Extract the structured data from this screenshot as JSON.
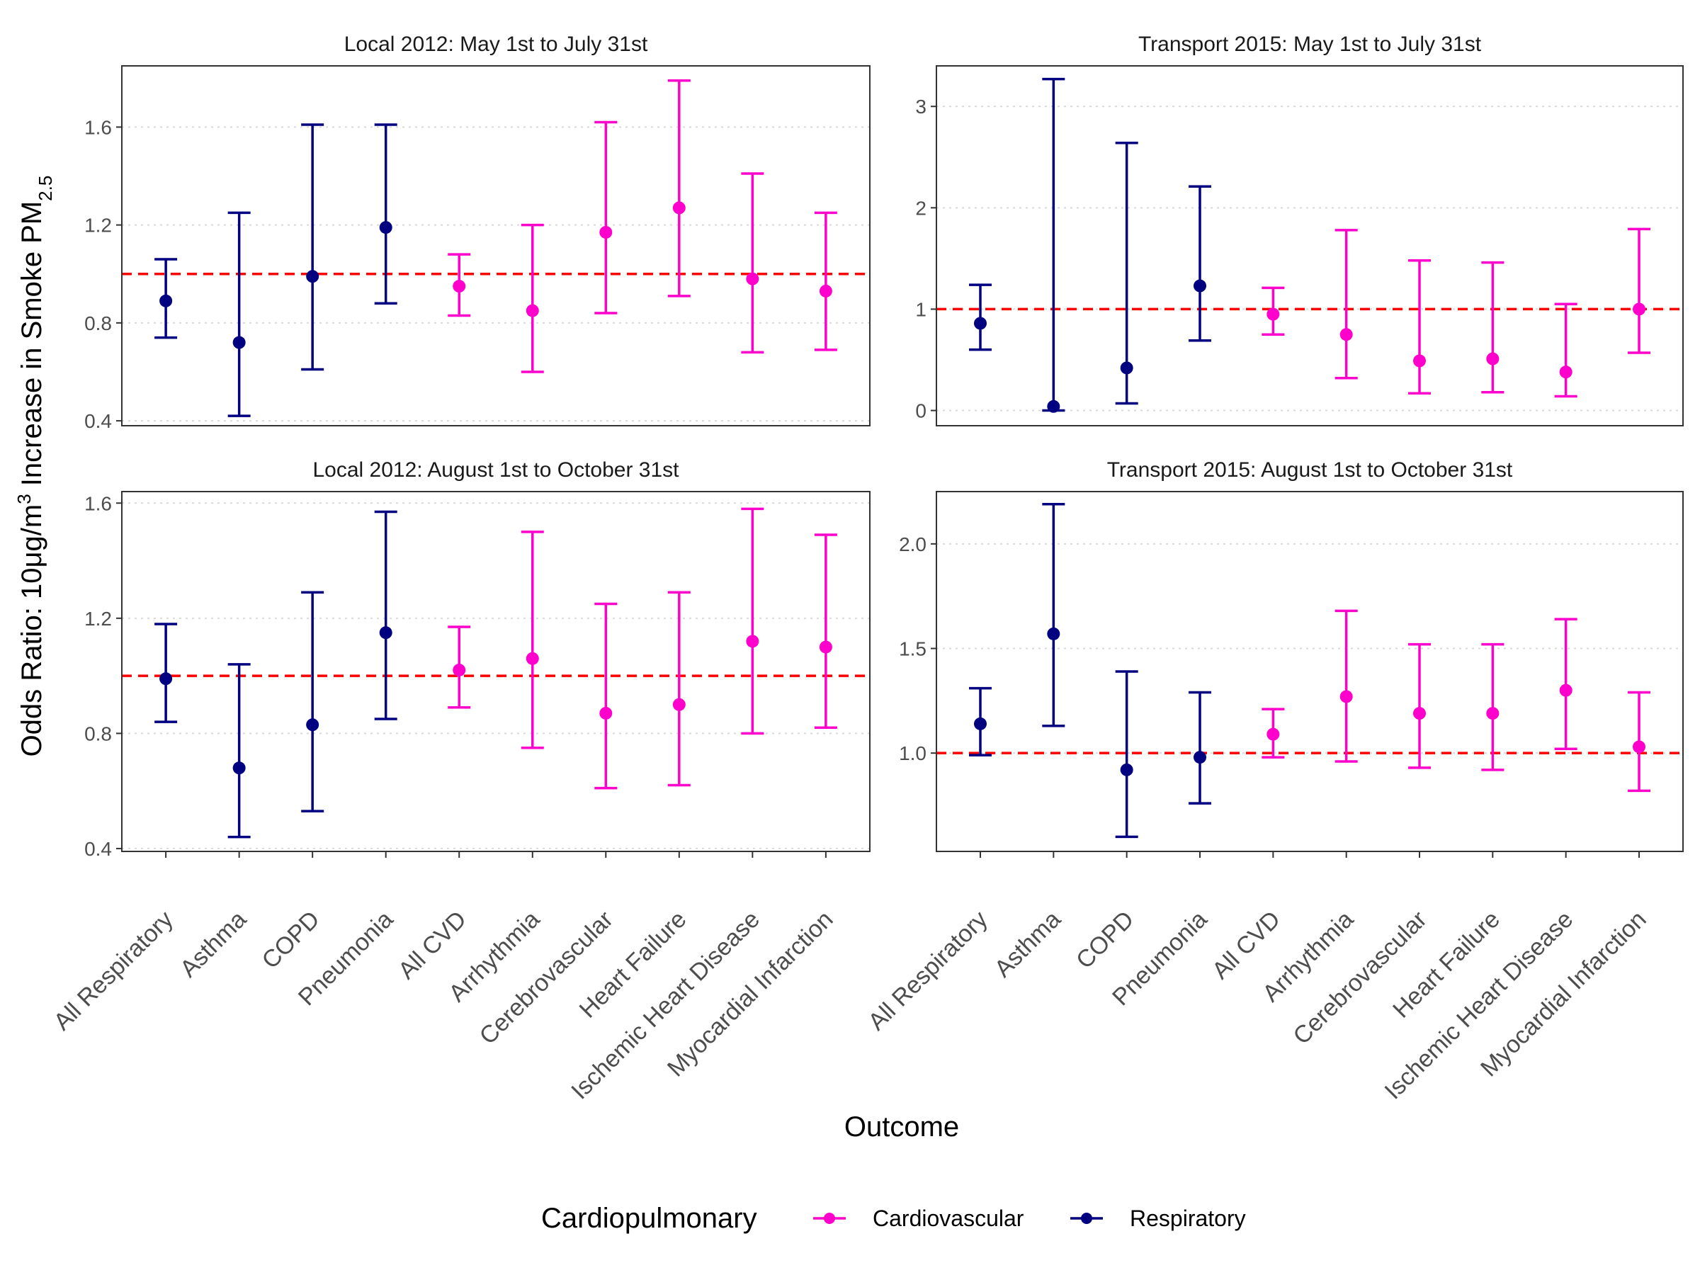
{
  "chart_data": {
    "type": "errorbar",
    "categories": [
      "All Respiratory",
      "Asthma",
      "COPD",
      "Pneumonia",
      "All CVD",
      "Arrhythmia",
      "Cerebrovascular",
      "Heart Failure",
      "Ischemic Heart Disease",
      "Myocardial Infarction"
    ],
    "groups": [
      "Respiratory",
      "Respiratory",
      "Respiratory",
      "Respiratory",
      "Cardiovascular",
      "Cardiovascular",
      "Cardiovascular",
      "Cardiovascular",
      "Cardiovascular",
      "Cardiovascular"
    ],
    "xlabel": "Outcome",
    "ylabel": {
      "prefix": "Odds Ratio: 10μg/m",
      "sup": "3",
      "middle": " Increase in Smoke PM",
      "sub": "2.5"
    },
    "reference_line": 1.0,
    "legend": {
      "title": "Cardiopulmonary",
      "position": "bottom",
      "entries": [
        {
          "name": "Cardiovascular",
          "color": "#FF00CC"
        },
        {
          "name": "Respiratory",
          "color": "#000080"
        }
      ]
    },
    "colors": {
      "Respiratory": "#000080",
      "Cardiovascular": "#FF00CC",
      "reference": "#FF0000"
    },
    "panels": [
      {
        "title": "Local 2012: May 1st to July 31st",
        "ylim": [
          0.38,
          1.85
        ],
        "yticks": [
          0.4,
          0.8,
          1.2,
          1.6
        ],
        "yticklabels": [
          "0.4",
          "0.8",
          "1.2",
          "1.6"
        ],
        "estimate": [
          0.89,
          0.72,
          0.99,
          1.19,
          0.95,
          0.85,
          1.17,
          1.27,
          0.98,
          0.93
        ],
        "lower": [
          0.74,
          0.42,
          0.61,
          0.88,
          0.83,
          0.6,
          0.84,
          0.91,
          0.68,
          0.69
        ],
        "upper": [
          1.06,
          1.25,
          1.61,
          1.61,
          1.08,
          1.2,
          1.62,
          1.79,
          1.41,
          1.25
        ]
      },
      {
        "title": "Transport 2015: May 1st to July 31st",
        "ylim": [
          -0.15,
          3.4
        ],
        "yticks": [
          0,
          1,
          2,
          3
        ],
        "yticklabels": [
          "0",
          "1",
          "2",
          "3"
        ],
        "estimate": [
          0.86,
          0.04,
          0.42,
          1.23,
          0.95,
          0.75,
          0.49,
          0.51,
          0.38,
          1.0
        ],
        "lower": [
          0.6,
          0.0,
          0.07,
          0.69,
          0.75,
          0.32,
          0.17,
          0.18,
          0.14,
          0.57
        ],
        "upper": [
          1.24,
          3.27,
          2.64,
          2.21,
          1.21,
          1.78,
          1.48,
          1.46,
          1.05,
          1.79
        ]
      },
      {
        "title": "Local 2012: August 1st to October 31st",
        "ylim": [
          0.39,
          1.64
        ],
        "yticks": [
          0.4,
          0.8,
          1.2,
          1.6
        ],
        "yticklabels": [
          "0.4",
          "0.8",
          "1.2",
          "1.6"
        ],
        "estimate": [
          0.99,
          0.68,
          0.83,
          1.15,
          1.02,
          1.06,
          0.87,
          0.9,
          1.12,
          1.1
        ],
        "lower": [
          0.84,
          0.44,
          0.53,
          0.85,
          0.89,
          0.75,
          0.61,
          0.62,
          0.8,
          0.82
        ],
        "upper": [
          1.18,
          1.04,
          1.29,
          1.57,
          1.17,
          1.5,
          1.25,
          1.29,
          1.58,
          1.49
        ]
      },
      {
        "title": "Transport 2015: August 1st to October 31st",
        "ylim": [
          0.53,
          2.25
        ],
        "yticks": [
          1.0,
          1.5,
          2.0
        ],
        "yticklabels": [
          "1.0",
          "1.5",
          "2.0"
        ],
        "estimate": [
          1.14,
          1.57,
          0.92,
          0.98,
          1.09,
          1.27,
          1.19,
          1.19,
          1.3,
          1.03
        ],
        "lower": [
          0.99,
          1.13,
          0.6,
          0.76,
          0.98,
          0.96,
          0.93,
          0.92,
          1.02,
          0.82
        ],
        "upper": [
          1.31,
          2.19,
          1.39,
          1.29,
          1.21,
          1.68,
          1.52,
          1.52,
          1.64,
          1.29
        ]
      }
    ]
  }
}
